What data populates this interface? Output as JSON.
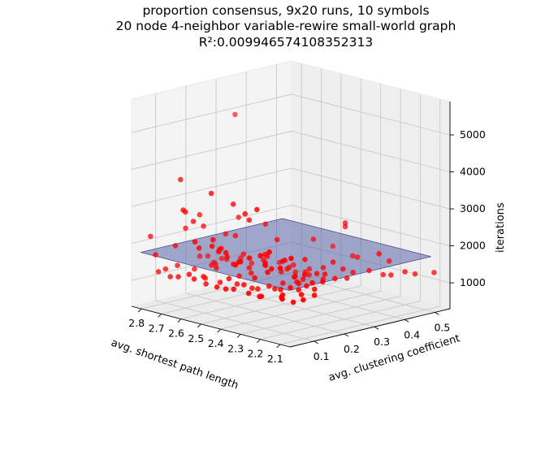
{
  "chart_data": {
    "type": "scatter",
    "title_lines": [
      "proportion consensus, 9x20 runs, 10 symbols",
      "20 node 4-neighbor variable-rewire small-world graph",
      "R²:0.009946574108352313"
    ],
    "xlabel": "avg. shortest path length",
    "ylabel": "avg. clustering coefficient",
    "zlabel": "iterations",
    "x_ticks": [
      "2.1",
      "2.2",
      "2.3",
      "2.4",
      "2.5",
      "2.6",
      "2.7",
      "2.8"
    ],
    "y_ticks": [
      "0.1",
      "0.2",
      "0.3",
      "0.4",
      "0.5"
    ],
    "z_ticks": [
      "1000",
      "2000",
      "3000",
      "4000",
      "5000"
    ],
    "xlim": [
      2.05,
      2.85
    ],
    "ylim": [
      0.02,
      0.55
    ],
    "zlim": [
      300,
      5900
    ],
    "grid": true,
    "colors": {
      "points": "#ff0000",
      "surface": "#5b66a6",
      "surface_edge": "#2a2f7a"
    },
    "surface": {
      "type": "fitted-plane",
      "x_range": [
        2.1,
        2.85
      ],
      "y_range": [
        0.05,
        0.52
      ],
      "z_at_corners": [
        1700,
        1700,
        1700,
        1700
      ]
    },
    "points": [
      [
        2.8,
        0.33,
        4950
      ],
      [
        2.74,
        0.11,
        3700
      ],
      [
        2.1,
        0.53,
        1250
      ],
      [
        2.8,
        0.05,
        2200
      ],
      [
        2.45,
        0.49,
        1300
      ],
      [
        2.55,
        0.49,
        1420
      ],
      [
        2.18,
        0.4,
        1900
      ],
      [
        2.35,
        0.4,
        2400
      ],
      [
        2.35,
        0.4,
        2500
      ],
      [
        2.28,
        0.38,
        1300
      ],
      [
        2.3,
        0.36,
        1400
      ],
      [
        2.25,
        0.34,
        1260
      ],
      [
        2.28,
        0.32,
        1250
      ],
      [
        2.3,
        0.3,
        1380
      ],
      [
        2.32,
        0.34,
        1600
      ],
      [
        2.4,
        0.3,
        1300
      ],
      [
        2.35,
        0.26,
        1250
      ],
      [
        2.28,
        0.26,
        1500
      ],
      [
        2.22,
        0.24,
        1400
      ],
      [
        2.2,
        0.2,
        1300
      ],
      [
        2.25,
        0.18,
        1260
      ],
      [
        2.3,
        0.16,
        2000
      ],
      [
        2.38,
        0.22,
        1800
      ],
      [
        2.45,
        0.2,
        1900
      ],
      [
        2.5,
        0.18,
        2800
      ],
      [
        2.46,
        0.14,
        3100
      ],
      [
        2.4,
        0.14,
        3300
      ],
      [
        2.55,
        0.16,
        3200
      ],
      [
        2.6,
        0.12,
        3500
      ],
      [
        2.7,
        0.1,
        2900
      ],
      [
        2.76,
        0.14,
        2300
      ],
      [
        2.79,
        0.06,
        1700
      ],
      [
        2.72,
        0.08,
        2000
      ],
      [
        2.65,
        0.06,
        3100
      ],
      [
        2.6,
        0.08,
        2100
      ],
      [
        2.55,
        0.09,
        2200
      ],
      [
        2.5,
        0.06,
        2500
      ],
      [
        2.45,
        0.07,
        2200
      ],
      [
        2.4,
        0.08,
        2000
      ],
      [
        2.35,
        0.1,
        1600
      ],
      [
        2.3,
        0.11,
        1800
      ],
      [
        2.25,
        0.09,
        2000
      ],
      [
        2.2,
        0.12,
        1500
      ],
      [
        2.15,
        0.1,
        1900
      ],
      [
        2.12,
        0.14,
        1700
      ],
      [
        2.18,
        0.16,
        1500
      ],
      [
        2.22,
        0.18,
        1700
      ],
      [
        2.6,
        0.2,
        2200
      ],
      [
        2.65,
        0.18,
        1800
      ],
      [
        2.7,
        0.16,
        2400
      ],
      [
        2.75,
        0.18,
        2600
      ],
      [
        2.68,
        0.22,
        2100
      ],
      [
        2.62,
        0.24,
        1600
      ],
      [
        2.55,
        0.26,
        1500
      ],
      [
        2.5,
        0.24,
        1700
      ],
      [
        2.45,
        0.28,
        1400
      ],
      [
        2.4,
        0.24,
        1500
      ],
      [
        2.48,
        0.22,
        1600
      ],
      [
        2.42,
        0.18,
        1700
      ],
      [
        2.58,
        0.14,
        2000
      ],
      [
        2.52,
        0.12,
        1900
      ],
      [
        2.36,
        0.06,
        2100
      ],
      [
        2.3,
        0.05,
        2300
      ],
      [
        2.26,
        0.06,
        2400
      ],
      [
        2.2,
        0.05,
        2600
      ],
      [
        2.16,
        0.06,
        2200
      ],
      [
        2.12,
        0.07,
        2500
      ],
      [
        2.66,
        0.1,
        2700
      ],
      [
        2.56,
        0.04,
        2400
      ],
      [
        2.44,
        0.04,
        2300
      ],
      [
        2.34,
        0.03,
        2100
      ],
      [
        2.62,
        0.15,
        1400
      ],
      [
        2.58,
        0.18,
        1500
      ],
      [
        2.52,
        0.16,
        1300
      ],
      [
        2.48,
        0.1,
        1400
      ],
      [
        2.42,
        0.11,
        1300
      ],
      [
        2.38,
        0.13,
        1200
      ],
      [
        2.34,
        0.16,
        1200
      ],
      [
        2.28,
        0.14,
        1300
      ],
      [
        2.24,
        0.12,
        1250
      ],
      [
        2.2,
        0.09,
        1300
      ],
      [
        2.16,
        0.13,
        1350
      ],
      [
        2.14,
        0.16,
        1300
      ],
      [
        2.7,
        0.13,
        1300
      ],
      [
        2.74,
        0.1,
        1400
      ],
      [
        2.77,
        0.08,
        1300
      ],
      [
        2.66,
        0.16,
        1400
      ],
      [
        2.64,
        0.12,
        1200
      ],
      [
        2.6,
        0.1,
        1250
      ],
      [
        2.54,
        0.11,
        1200
      ],
      [
        2.5,
        0.14,
        1150
      ],
      [
        2.44,
        0.15,
        1100
      ],
      [
        2.4,
        0.18,
        1150
      ],
      [
        2.36,
        0.2,
        1250
      ],
      [
        2.32,
        0.22,
        1300
      ],
      [
        2.28,
        0.2,
        1350
      ],
      [
        2.52,
        0.2,
        1300
      ],
      [
        2.56,
        0.22,
        1350
      ],
      [
        2.46,
        0.26,
        1300
      ],
      [
        2.42,
        0.28,
        1200
      ],
      [
        2.38,
        0.3,
        1250
      ],
      [
        2.34,
        0.32,
        1150
      ],
      [
        2.18,
        0.44,
        1250
      ],
      [
        2.22,
        0.44,
        1200
      ],
      [
        2.26,
        0.42,
        1300
      ],
      [
        2.14,
        0.46,
        1350
      ],
      [
        2.15,
        0.5,
        1200
      ],
      [
        2.7,
        0.2,
        1300
      ],
      [
        2.74,
        0.22,
        1250
      ],
      [
        2.78,
        0.2,
        1400
      ],
      [
        2.8,
        0.24,
        1300
      ],
      [
        2.76,
        0.26,
        1250
      ],
      [
        2.72,
        0.25,
        1300
      ],
      [
        2.68,
        0.27,
        1350
      ],
      [
        2.64,
        0.28,
        1250
      ],
      [
        2.6,
        0.3,
        1200
      ],
      [
        2.56,
        0.32,
        1300
      ],
      [
        2.52,
        0.34,
        1250
      ],
      [
        2.48,
        0.32,
        1150
      ],
      [
        2.44,
        0.34,
        1250
      ],
      [
        2.4,
        0.36,
        1300
      ],
      [
        2.66,
        0.05,
        1300
      ],
      [
        2.62,
        0.06,
        1400
      ],
      [
        2.7,
        0.05,
        1250
      ],
      [
        2.76,
        0.05,
        1300
      ],
      [
        2.58,
        0.05,
        1350
      ],
      [
        2.52,
        0.05,
        1300
      ],
      [
        2.48,
        0.06,
        1250
      ],
      [
        2.42,
        0.05,
        1300
      ],
      [
        2.38,
        0.05,
        1350
      ],
      [
        2.32,
        0.06,
        1300
      ],
      [
        2.28,
        0.07,
        1250
      ],
      [
        2.24,
        0.05,
        1350
      ],
      [
        2.18,
        0.08,
        1300
      ],
      [
        2.14,
        0.09,
        1250
      ],
      [
        2.12,
        0.11,
        1300
      ],
      [
        2.63,
        0.23,
        2600
      ],
      [
        2.57,
        0.28,
        2400
      ],
      [
        2.45,
        0.36,
        2000
      ],
      [
        2.35,
        0.44,
        1500
      ],
      [
        2.25,
        0.48,
        1450
      ],
      [
        2.42,
        0.22,
        2300
      ],
      [
        2.34,
        0.26,
        1800
      ]
    ]
  }
}
